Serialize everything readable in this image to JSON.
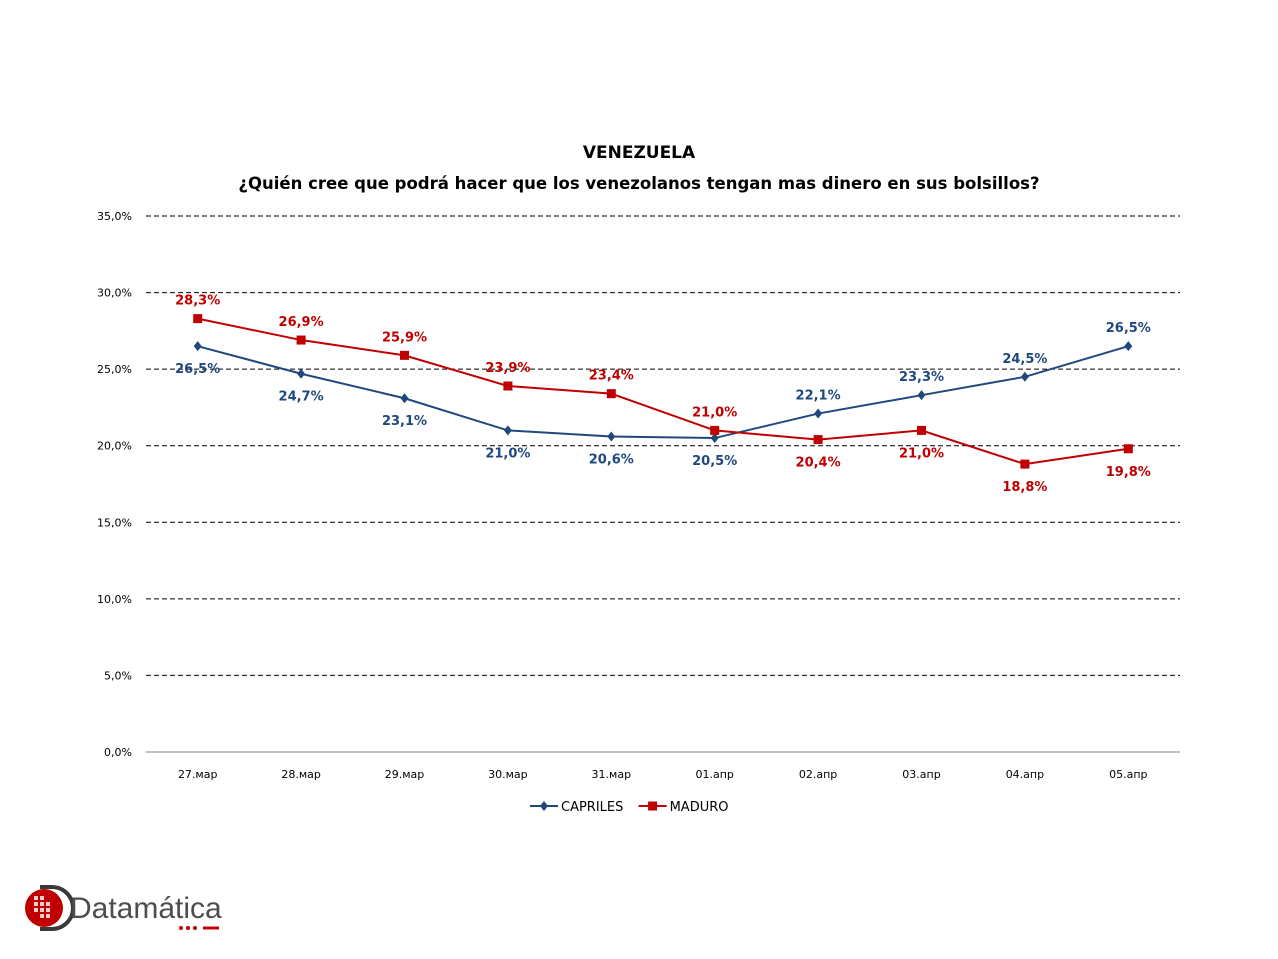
{
  "chart_data": {
    "type": "line",
    "title": "VENEZUELA",
    "subtitle": "¿Quién cree que podrá hacer que los venezolanos tengan mas dinero en sus bolsillos?",
    "categories": [
      "27.мар",
      "28.мар",
      "29.мар",
      "30.мар",
      "31.мар",
      "01.апр",
      "02.апр",
      "03.апр",
      "04.апр",
      "05.апр"
    ],
    "ylim": [
      0,
      35
    ],
    "yticks": [
      "0,0%",
      "5,0%",
      "10,0%",
      "15,0%",
      "20,0%",
      "25,0%",
      "30,0%",
      "35,0%"
    ],
    "grid": true,
    "legend_position": "bottom",
    "series": [
      {
        "name": "CAPRILES",
        "color": "#1f497d",
        "marker": "diamond",
        "values": [
          26.5,
          24.7,
          23.1,
          21.0,
          20.6,
          20.5,
          22.1,
          23.3,
          24.5,
          26.5
        ],
        "labels": [
          "26,5%",
          "24,7%",
          "23,1%",
          "21,0%",
          "20,6%",
          "20,5%",
          "22,1%",
          "23,3%",
          "24,5%",
          "26,5%"
        ],
        "label_side": [
          "below",
          "below",
          "below",
          "below",
          "below",
          "below",
          "above",
          "above",
          "above",
          "above"
        ]
      },
      {
        "name": "MADURO",
        "color": "#c00000",
        "marker": "square",
        "values": [
          28.3,
          26.9,
          25.9,
          23.9,
          23.4,
          21.0,
          20.4,
          21.0,
          18.8,
          19.8
        ],
        "labels": [
          "28,3%",
          "26,9%",
          "25,9%",
          "23,9%",
          "23,4%",
          "21,0%",
          "20,4%",
          "21,0%",
          "18,8%",
          "19,8%"
        ],
        "label_side": [
          "above",
          "above",
          "above",
          "above",
          "above",
          "above",
          "below",
          "below",
          "below",
          "below"
        ]
      }
    ]
  },
  "logo": {
    "text": "Datamática",
    "color": "#4d4d4d",
    "accent": "#c00000"
  }
}
